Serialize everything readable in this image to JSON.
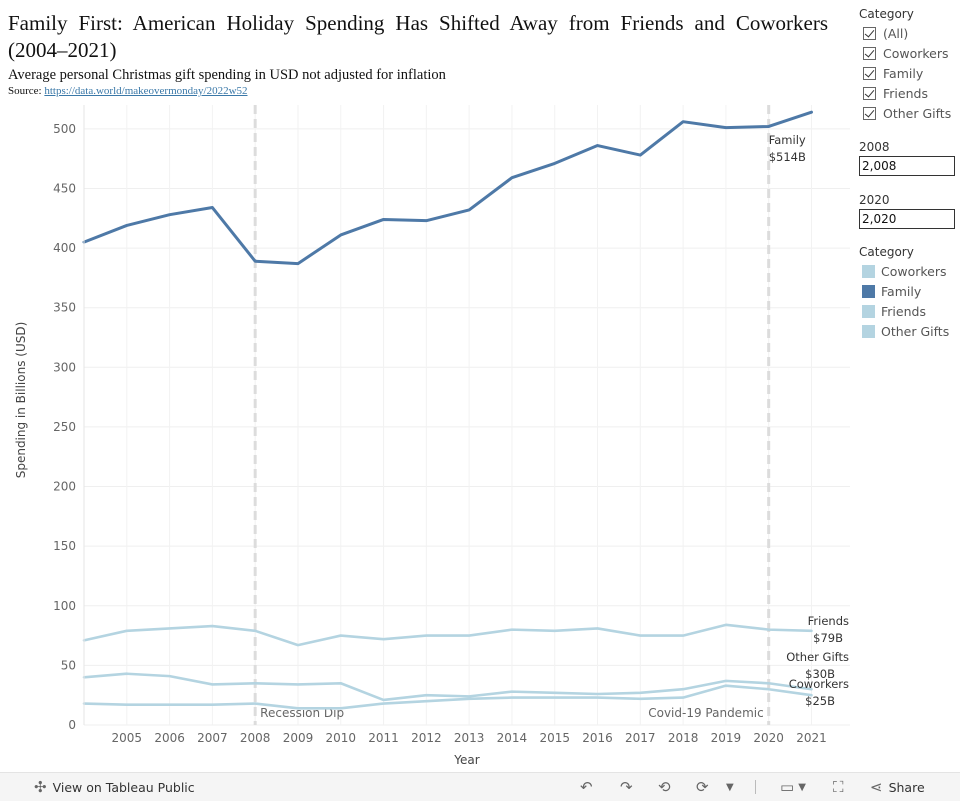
{
  "header": {
    "title": "Family First: American Holiday Spending Has Shifted Away from Friends and Coworkers (2004–2021)",
    "subtitle": "Average personal Christmas gift spending in USD not adjusted for inflation",
    "source_label": "Source: ",
    "source_link": "https://data.world/makeovermonday/2022w52"
  },
  "filter": {
    "heading": "Category",
    "options": [
      "(All)",
      "Coworkers",
      "Family",
      "Friends",
      "Other Gifts"
    ]
  },
  "params": [
    {
      "label": "2008",
      "value": "2,008"
    },
    {
      "label": "2020",
      "value": "2,020"
    }
  ],
  "legend": {
    "heading": "Category",
    "items": [
      {
        "name": "Coworkers",
        "color": "#b4d4e1"
      },
      {
        "name": "Family",
        "color": "#4e79a7"
      },
      {
        "name": "Friends",
        "color": "#b4d4e1"
      },
      {
        "name": "Other Gifts",
        "color": "#b4d4e1"
      }
    ]
  },
  "chart_data": {
    "type": "line",
    "title": "Family First: American Holiday Spending Has Shifted Away from Friends and Coworkers (2004–2021)",
    "xlabel": "Year",
    "ylabel": "Spending in Billions (USD)",
    "xlim": [
      2004,
      2021
    ],
    "ylim": [
      0,
      520
    ],
    "yticks": [
      0,
      50,
      100,
      150,
      200,
      250,
      300,
      350,
      400,
      450,
      500
    ],
    "xticks": [
      2005,
      2006,
      2007,
      2008,
      2009,
      2010,
      2011,
      2012,
      2013,
      2014,
      2015,
      2016,
      2017,
      2018,
      2019,
      2020,
      2021
    ],
    "x": [
      2004,
      2005,
      2006,
      2007,
      2008,
      2009,
      2010,
      2011,
      2012,
      2013,
      2014,
      2015,
      2016,
      2017,
      2018,
      2019,
      2020,
      2021
    ],
    "series": [
      {
        "name": "Family",
        "color": "#4e79a7",
        "values": [
          405,
          419,
          428,
          434,
          389,
          387,
          411,
          424,
          423,
          432,
          459,
          471,
          486,
          478,
          506,
          501,
          502,
          514
        ]
      },
      {
        "name": "Friends",
        "color": "#b4d4e1",
        "values": [
          71,
          79,
          81,
          83,
          79,
          67,
          75,
          72,
          75,
          75,
          80,
          79,
          81,
          75,
          75,
          84,
          80,
          79
        ]
      },
      {
        "name": "Other Gifts",
        "color": "#b4d4e1",
        "values": [
          40,
          43,
          41,
          34,
          35,
          34,
          35,
          21,
          25,
          24,
          28,
          27,
          26,
          27,
          30,
          37,
          35,
          30
        ]
      },
      {
        "name": "Coworkers",
        "color": "#b4d4e1",
        "values": [
          18,
          17,
          17,
          17,
          18,
          14,
          14,
          18,
          20,
          22,
          23,
          23,
          23,
          22,
          23,
          33,
          30,
          25
        ]
      }
    ],
    "end_labels": [
      {
        "series": "Family",
        "name": "Family",
        "value": "$514B"
      },
      {
        "series": "Friends",
        "name": "Friends",
        "value": "$79B"
      },
      {
        "series": "Other Gifts",
        "name": "Other Gifts",
        "value": "$30B"
      },
      {
        "series": "Coworkers",
        "name": "Coworkers",
        "value": "$25B"
      }
    ],
    "reference_lines": [
      {
        "x": 2008,
        "label": "Recession Dip"
      },
      {
        "x": 2020,
        "label": "Covid-19 Pandemic"
      }
    ],
    "grid": true,
    "legend": "right"
  },
  "toolbar": {
    "view_label": "View on Tableau Public",
    "share_label": "Share"
  }
}
